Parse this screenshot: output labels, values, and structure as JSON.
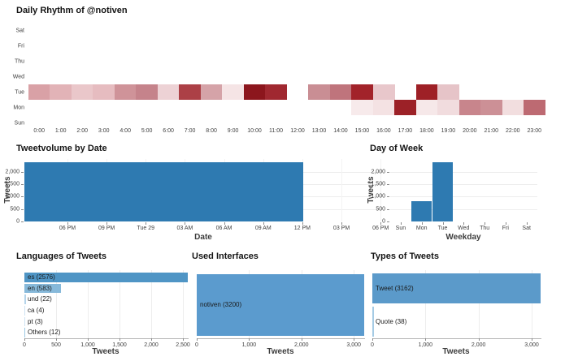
{
  "chart_data": [
    {
      "id": "daily-rhythm",
      "type": "heatmap",
      "title": "Daily Rhythm of @notiven",
      "y_categories": [
        "Sat",
        "Fri",
        "Thu",
        "Wed",
        "Tue",
        "Mon",
        "Sun"
      ],
      "x_categories": [
        "0:00",
        "1:00",
        "2:00",
        "3:00",
        "4:00",
        "5:00",
        "6:00",
        "7:00",
        "8:00",
        "9:00",
        "10:00",
        "11:00",
        "12:00",
        "13:00",
        "14:00",
        "15:00",
        "16:00",
        "17:00",
        "18:00",
        "19:00",
        "20:00",
        "21:00",
        "22:00",
        "23:00"
      ],
      "legend": "none",
      "cells": [
        {
          "day": "Tue",
          "hour": 0,
          "color": "#d9a1a6"
        },
        {
          "day": "Tue",
          "hour": 1,
          "color": "#e2b3b7"
        },
        {
          "day": "Tue",
          "hour": 2,
          "color": "#eac7ca"
        },
        {
          "day": "Tue",
          "hour": 3,
          "color": "#e6bcc0"
        },
        {
          "day": "Tue",
          "hour": 4,
          "color": "#cf9399"
        },
        {
          "day": "Tue",
          "hour": 5,
          "color": "#c5838b"
        },
        {
          "day": "Tue",
          "hour": 6,
          "color": "#edd2d5"
        },
        {
          "day": "Tue",
          "hour": 7,
          "color": "#ac4046"
        },
        {
          "day": "Tue",
          "hour": 8,
          "color": "#d5a3a8"
        },
        {
          "day": "Tue",
          "hour": 9,
          "color": "#f5e4e5"
        },
        {
          "day": "Tue",
          "hour": 10,
          "color": "#8c161d"
        },
        {
          "day": "Tue",
          "hour": 11,
          "color": "#a02830"
        },
        {
          "day": "Tue",
          "hour": 13,
          "color": "#c98e94"
        },
        {
          "day": "Tue",
          "hour": 14,
          "color": "#bf747c"
        },
        {
          "day": "Tue",
          "hour": 15,
          "color": "#a2232a"
        },
        {
          "day": "Tue",
          "hour": 16,
          "color": "#e8c7cb"
        },
        {
          "day": "Tue",
          "hour": 18,
          "color": "#9e2026"
        },
        {
          "day": "Tue",
          "hour": 19,
          "color": "#e6c4c8"
        },
        {
          "day": "Mon",
          "hour": 15,
          "color": "#f7eaeb"
        },
        {
          "day": "Mon",
          "hour": 16,
          "color": "#f4e2e3"
        },
        {
          "day": "Mon",
          "hour": 17,
          "color": "#9c2127"
        },
        {
          "day": "Mon",
          "hour": 18,
          "color": "#f6e8e9"
        },
        {
          "day": "Mon",
          "hour": 19,
          "color": "#f1dcde"
        },
        {
          "day": "Mon",
          "hour": 20,
          "color": "#c8858c"
        },
        {
          "day": "Mon",
          "hour": 21,
          "color": "#cc9096"
        },
        {
          "day": "Mon",
          "hour": 22,
          "color": "#f2dedf"
        },
        {
          "day": "Mon",
          "hour": 23,
          "color": "#bd6a72"
        }
      ]
    },
    {
      "id": "tweetvolume-by-date",
      "type": "area",
      "title": "Tweetvolume by Date",
      "xlabel": "Date",
      "ylabel": "Tweets",
      "ylim": [
        0,
        2520
      ],
      "y_tick_values": [
        0,
        500,
        1000,
        1500,
        2000
      ],
      "y_tick_labels": [
        "0",
        "500",
        "1,000",
        "1,500",
        "2,000"
      ],
      "x_ticks": [
        "06 PM",
        "09 PM",
        "Tue 29",
        "03 AM",
        "06 AM",
        "09 AM",
        "12 PM",
        "03 PM",
        "06 PM"
      ],
      "block": {
        "value": 2400,
        "x_end_frac": 0.78
      },
      "color": "#2e7ab1",
      "grid": true
    },
    {
      "id": "day-of-week",
      "type": "bar",
      "title": "Day of Week",
      "xlabel": "Weekday",
      "ylabel": "Tweets",
      "categories": [
        "Sun",
        "Mon",
        "Tue",
        "Wed",
        "Thu",
        "Fri",
        "Sat"
      ],
      "values": [
        0,
        820,
        2400,
        0,
        0,
        0,
        0
      ],
      "ylim": [
        0,
        2520
      ],
      "y_tick_values": [
        0,
        500,
        1000,
        1500,
        2000
      ],
      "y_tick_labels": [
        "0",
        "500",
        "1,000",
        "1,500",
        "2,000"
      ],
      "color": "#2e7ab1",
      "grid": true
    },
    {
      "id": "languages-of-tweets",
      "type": "bar-horizontal",
      "title": "Languages of Tweets",
      "xlabel": "Tweets",
      "categories": [
        "es",
        "en",
        "und",
        "ca",
        "pt",
        "Others"
      ],
      "values": [
        2576,
        583,
        22,
        4,
        3,
        12
      ],
      "bar_labels": [
        "es (2576)",
        "en (583)",
        "und (22)",
        "ca (4)",
        "pt (3)",
        "Others (12)"
      ],
      "colors": [
        "#4f95c5",
        "#87b9da",
        "#b5d4ea",
        "#cfe3f2",
        "#cfe3f2",
        "#9ec9e4"
      ],
      "xlim": [
        0,
        2576
      ],
      "x_tick_values": [
        0,
        500,
        1000,
        1500,
        2000,
        2500
      ],
      "x_tick_labels": [
        "0",
        "500",
        "1,000",
        "1,500",
        "2,000",
        "2,500"
      ],
      "grid": true
    },
    {
      "id": "used-interfaces",
      "type": "bar-horizontal",
      "title": "Used Interfaces",
      "xlabel": "Tweets",
      "categories": [
        "notiven"
      ],
      "values": [
        3200
      ],
      "bar_labels": [
        "notiven (3200)"
      ],
      "colors": [
        "#5b9bce"
      ],
      "xlim": [
        0,
        3200
      ],
      "x_tick_values": [
        0,
        1000,
        2000,
        3000
      ],
      "x_tick_labels": [
        "0",
        "1,000",
        "2,000",
        "3,000"
      ],
      "grid": true
    },
    {
      "id": "types-of-tweets",
      "type": "bar-horizontal",
      "title": "Types of Tweets",
      "xlabel": "Tweets",
      "categories": [
        "Tweet",
        "Quote"
      ],
      "values": [
        3162,
        38
      ],
      "bar_labels": [
        "Tweet (3162)",
        "Quote (38)"
      ],
      "colors": [
        "#5b9aca",
        "#a5cbe5"
      ],
      "xlim": [
        0,
        3162
      ],
      "x_tick_values": [
        0,
        1000,
        2000,
        3000
      ],
      "x_tick_labels": [
        "0",
        "1,000",
        "2,000",
        "3,000"
      ],
      "grid": true
    }
  ]
}
